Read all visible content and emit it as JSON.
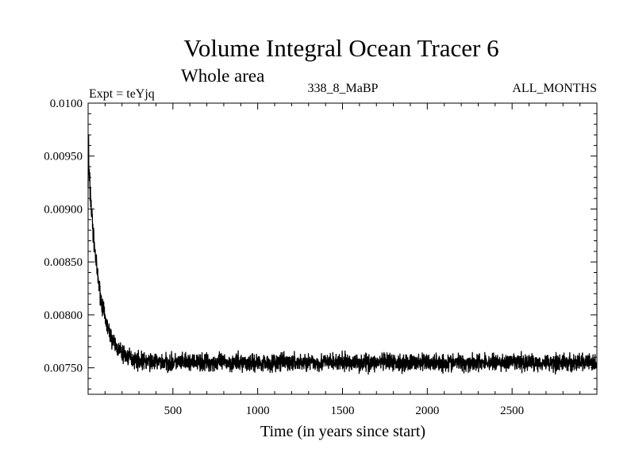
{
  "chart_data": {
    "type": "line",
    "title": "Volume Integral Ocean Tracer 6",
    "subtitle": "Whole area",
    "experiment_label": "Expt = teYjq",
    "period_label": "338_8_MaBP",
    "months_label": "ALL_MONTHS",
    "xlabel": "Time (in years since start)",
    "ylabel": "",
    "xlim": [
      0,
      3000
    ],
    "ylim": [
      0.00725,
      0.01
    ],
    "xticks": [
      500,
      1000,
      1500,
      2000,
      2500
    ],
    "xtick_labels": [
      "500",
      "1000",
      "1500",
      "2000",
      "2500"
    ],
    "yticks": [
      0.0075,
      0.008,
      0.0085,
      0.009,
      0.0095,
      0.01
    ],
    "ytick_labels": [
      "0.00750",
      "0.00800",
      "0.00850",
      "0.00900",
      "0.00950",
      "0.0100"
    ],
    "grid": false,
    "series": [
      {
        "name": "Volume integral tracer 6",
        "color": "#000000",
        "shape": {
          "start_value": 0.0095,
          "equilibrium_value": 0.00755,
          "decay_timescale_years": 65,
          "noise_amplitude": 7e-05,
          "years": 3000
        }
      }
    ]
  }
}
